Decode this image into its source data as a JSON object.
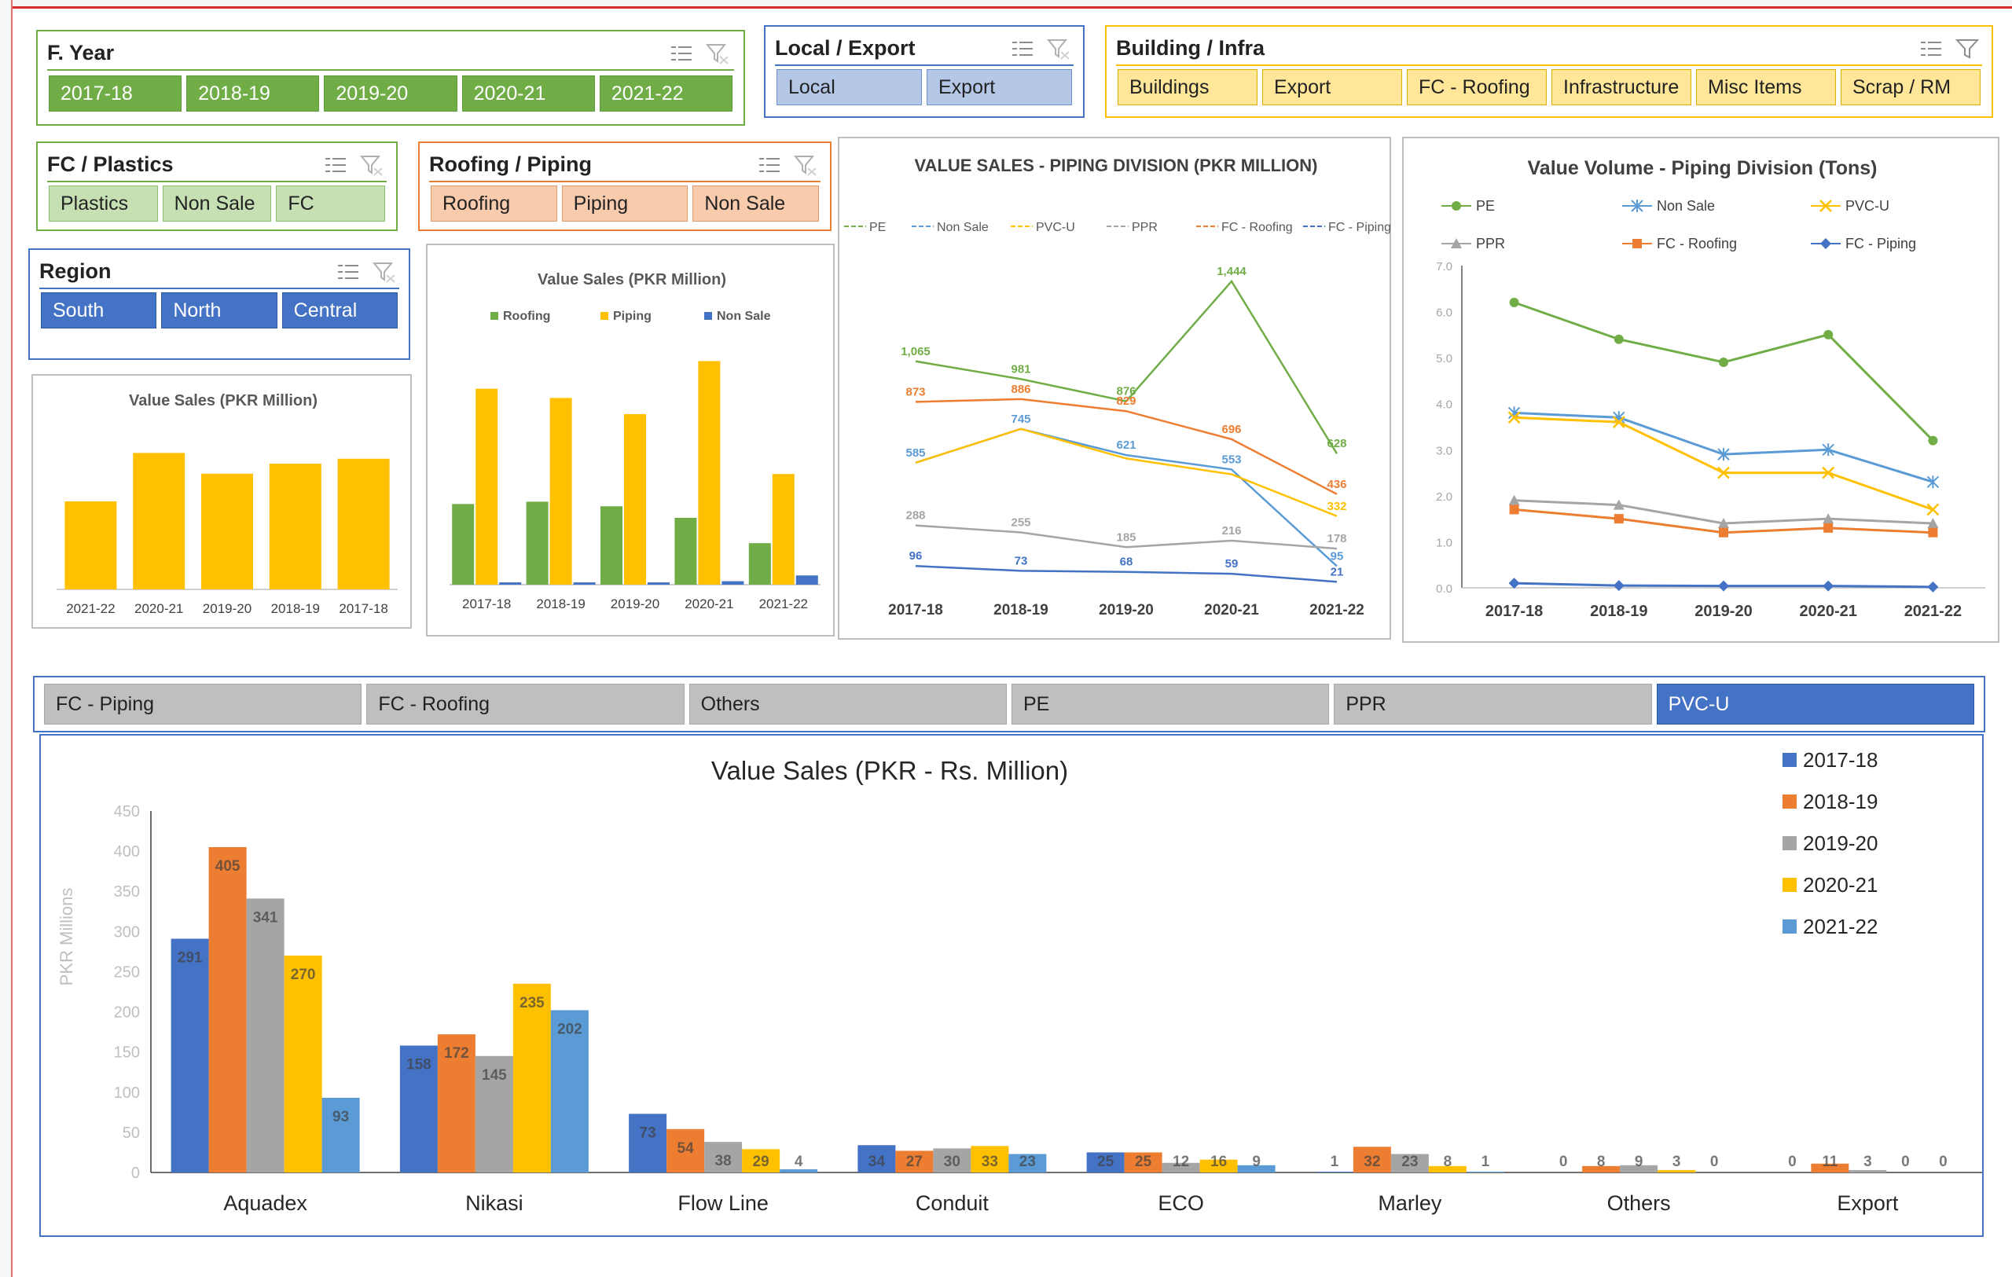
{
  "slicers": {
    "fyear": {
      "title": "F. Year",
      "items": [
        "2017-18",
        "2018-19",
        "2019-20",
        "2020-21",
        "2021-22"
      ]
    },
    "local_export": {
      "title": "Local / Export",
      "items": [
        "Local",
        "Export"
      ]
    },
    "building_infra": {
      "title": "Building / Infra",
      "items": [
        "Buildings",
        "Export",
        "FC - Roofing",
        "Infrastructure",
        "Misc Items",
        "Scrap / RM"
      ]
    },
    "fc_plastics": {
      "title": "FC / Plastics",
      "items": [
        "Plastics",
        "Non Sale",
        "FC"
      ]
    },
    "roofing_piping": {
      "title": "Roofing / Piping",
      "items": [
        "Roofing",
        "Piping",
        "Non Sale"
      ]
    },
    "region": {
      "title": "Region",
      "items": [
        "South",
        "North",
        "Central"
      ]
    },
    "category": {
      "items": [
        "FC - Piping",
        "FC - Roofing",
        "Others",
        "PE",
        "PPR",
        "PVC-U"
      ],
      "selected": "PVC-U"
    }
  },
  "icons": {
    "multi_select": "multi-select-icon",
    "clear_filter": "clear-filter-icon"
  },
  "colors": {
    "blue": "#4472c4",
    "orange": "#ed7d31",
    "gray": "#a5a5a5",
    "gold": "#ffc000",
    "light_blue": "#5b9bd5",
    "green": "#70ad47",
    "slicer_green": "#70ad47"
  },
  "chart_data": [
    {
      "id": "value_sales_small",
      "type": "bar",
      "title": "Value Sales (PKR Million)",
      "categories": [
        "2021-22",
        "2020-21",
        "2019-20",
        "2018-19",
        "2017-18"
      ],
      "values": [
        700,
        1085,
        920,
        1000,
        1039
      ],
      "ylim": [
        0,
        1200
      ]
    },
    {
      "id": "value_sales_roofing_piping",
      "type": "bar",
      "title": "Value Sales (PKR Million)",
      "categories": [
        "2017-18",
        "2018-19",
        "2019-20",
        "2020-21",
        "2021-22"
      ],
      "series": [
        {
          "name": "Roofing",
          "values": [
            350,
            360,
            340,
            290,
            180
          ]
        },
        {
          "name": "Piping",
          "values": [
            850,
            810,
            740,
            970,
            480
          ]
        },
        {
          "name": "Non Sale",
          "values": [
            10,
            10,
            10,
            15,
            40
          ]
        }
      ],
      "ylim": [
        0,
        1050
      ]
    },
    {
      "id": "value_sales_piping_division",
      "type": "line",
      "title": "VALUE SALES - PIPING DIVISION (PKR MILLION)",
      "categories": [
        "2017-18",
        "2018-19",
        "2019-20",
        "2020-21",
        "2021-22"
      ],
      "series": [
        {
          "name": "PE",
          "values": [
            1065,
            981,
            876,
            1444,
            628
          ],
          "labels": [
            "1,065",
            "981",
            "876",
            "1,444",
            "628"
          ]
        },
        {
          "name": "Non Sale",
          "values": [
            585,
            745,
            621,
            553,
            95
          ],
          "labels": [
            "585",
            "745",
            "621",
            "553",
            "95"
          ]
        },
        {
          "name": "PVC-U",
          "values": [
            585,
            745,
            605,
            530,
            332
          ],
          "labels": [
            "",
            "",
            "",
            "",
            "332"
          ]
        },
        {
          "name": "PPR",
          "values": [
            288,
            255,
            185,
            216,
            178
          ],
          "labels": [
            "288",
            "255",
            "185",
            "216",
            "178"
          ]
        },
        {
          "name": "FC - Roofing",
          "values": [
            873,
            886,
            829,
            696,
            436
          ],
          "labels": [
            "873",
            "886",
            "829",
            "696",
            "436"
          ]
        },
        {
          "name": "FC - Piping",
          "values": [
            96,
            73,
            68,
            59,
            21
          ],
          "labels": [
            "96",
            "73",
            "68",
            "59",
            "21"
          ]
        }
      ],
      "ylim": [
        0,
        1600
      ]
    },
    {
      "id": "value_volume_piping_division",
      "type": "line",
      "title": "Value Volume - Piping Division (Tons)",
      "categories": [
        "2017-18",
        "2018-19",
        "2019-20",
        "2020-21",
        "2021-22"
      ],
      "series": [
        {
          "name": "PE",
          "values": [
            6.2,
            5.4,
            4.9,
            5.5,
            3.2
          ]
        },
        {
          "name": "Non Sale",
          "values": [
            3.8,
            3.7,
            2.9,
            3.0,
            2.3
          ]
        },
        {
          "name": "PVC-U",
          "values": [
            3.7,
            3.6,
            2.5,
            2.5,
            1.7
          ]
        },
        {
          "name": "PPR",
          "values": [
            1.9,
            1.8,
            1.4,
            1.5,
            1.4
          ]
        },
        {
          "name": "FC - Roofing",
          "values": [
            1.7,
            1.5,
            1.2,
            1.3,
            1.2
          ]
        },
        {
          "name": "FC - Piping",
          "values": [
            0.1,
            0.05,
            0.04,
            0.04,
            0.02
          ]
        }
      ],
      "ytick_labels": [
        "0.0",
        "1.0",
        "2.0",
        "3.0",
        "4.0",
        "5.0",
        "6.0",
        "7.0"
      ],
      "ylim": [
        0,
        7
      ]
    },
    {
      "id": "value_sales_brand",
      "type": "bar",
      "title": "Value Sales  (PKR - Rs. Million)",
      "ylabel": "PKR Millions",
      "categories": [
        "Aquadex",
        "Nikasi",
        "Flow Line",
        "Conduit",
        "ECO",
        "Marley",
        "Others",
        "Export"
      ],
      "series": [
        {
          "name": "2017-18",
          "values": [
            291,
            158,
            73,
            34,
            25,
            1,
            0,
            0
          ]
        },
        {
          "name": "2018-19",
          "values": [
            405,
            172,
            54,
            27,
            25,
            32,
            8,
            11
          ]
        },
        {
          "name": "2019-20",
          "values": [
            341,
            145,
            38,
            30,
            12,
            23,
            9,
            3
          ]
        },
        {
          "name": "2020-21",
          "values": [
            270,
            235,
            29,
            33,
            16,
            8,
            3,
            0
          ]
        },
        {
          "name": "2021-22",
          "values": [
            93,
            202,
            4,
            23,
            9,
            1,
            0,
            0
          ]
        }
      ],
      "yticks": [
        "0",
        "50",
        "100",
        "150",
        "200",
        "250",
        "300",
        "350",
        "400",
        "450"
      ],
      "ylim": [
        0,
        450
      ]
    }
  ]
}
